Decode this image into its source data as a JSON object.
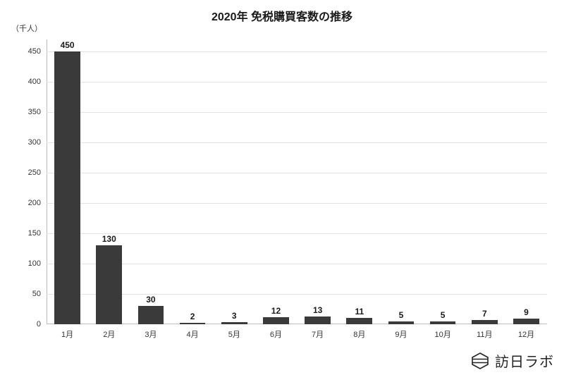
{
  "chart": {
    "type": "bar",
    "title": "2020年 免税購買客数の推移",
    "title_fontsize": 16,
    "title_color": "#1a1a1a",
    "y_unit_label": "（千人）",
    "background_color": "#ffffff",
    "bar_color": "#3a3a3a",
    "grid_color": "#e2e2e2",
    "axis_color": "#bdbdbd",
    "tick_label_color": "#333333",
    "value_label_color": "#1a1a1a",
    "tick_fontsize": 11,
    "value_fontsize": 12,
    "ylim": [
      0,
      470
    ],
    "yticks": [
      0,
      50,
      100,
      150,
      200,
      250,
      300,
      350,
      400,
      450
    ],
    "bar_width_ratio": 0.62,
    "categories": [
      "1月",
      "2月",
      "3月",
      "4月",
      "5月",
      "6月",
      "7月",
      "8月",
      "9月",
      "10月",
      "11月",
      "12月"
    ],
    "values": [
      450,
      130,
      30,
      2,
      3,
      12,
      13,
      11,
      5,
      5,
      7,
      9
    ]
  },
  "brand": {
    "text": "訪日ラボ",
    "icon_stroke": "#222222"
  }
}
